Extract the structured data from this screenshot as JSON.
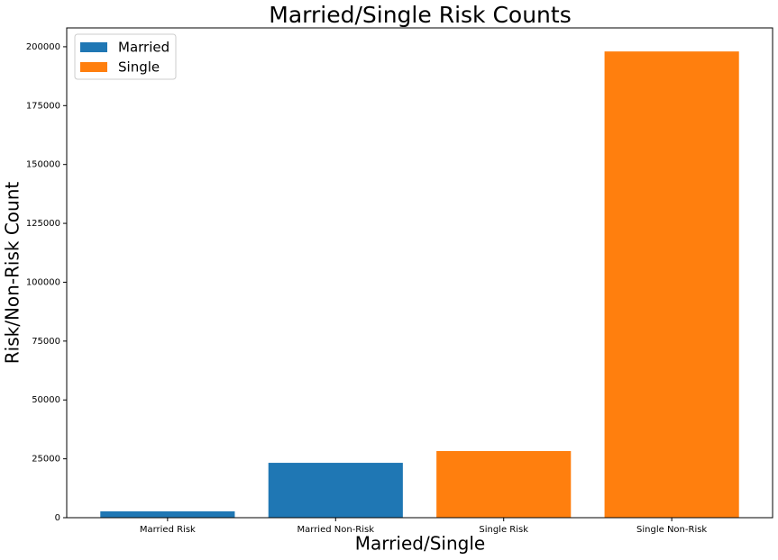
{
  "chart_data": {
    "type": "bar",
    "title": "Married/Single Risk Counts",
    "x_label": "Married/Single",
    "y_label": "Risk/Non-Risk Count",
    "categories": [
      "Married Risk",
      "Married Non-Risk",
      "Single Risk",
      "Single Non-Risk"
    ],
    "series": [
      {
        "name": "Married",
        "color": "#1f77b4",
        "values": [
          2700,
          23300,
          null,
          null
        ]
      },
      {
        "name": "Single",
        "color": "#ff7f0e",
        "values": [
          null,
          null,
          28300,
          198000
        ]
      }
    ],
    "ylim": [
      0,
      208000
    ],
    "yticks": [
      0,
      25000,
      50000,
      75000,
      100000,
      125000,
      150000,
      175000,
      200000
    ],
    "grid": false,
    "legend": "upper left"
  }
}
